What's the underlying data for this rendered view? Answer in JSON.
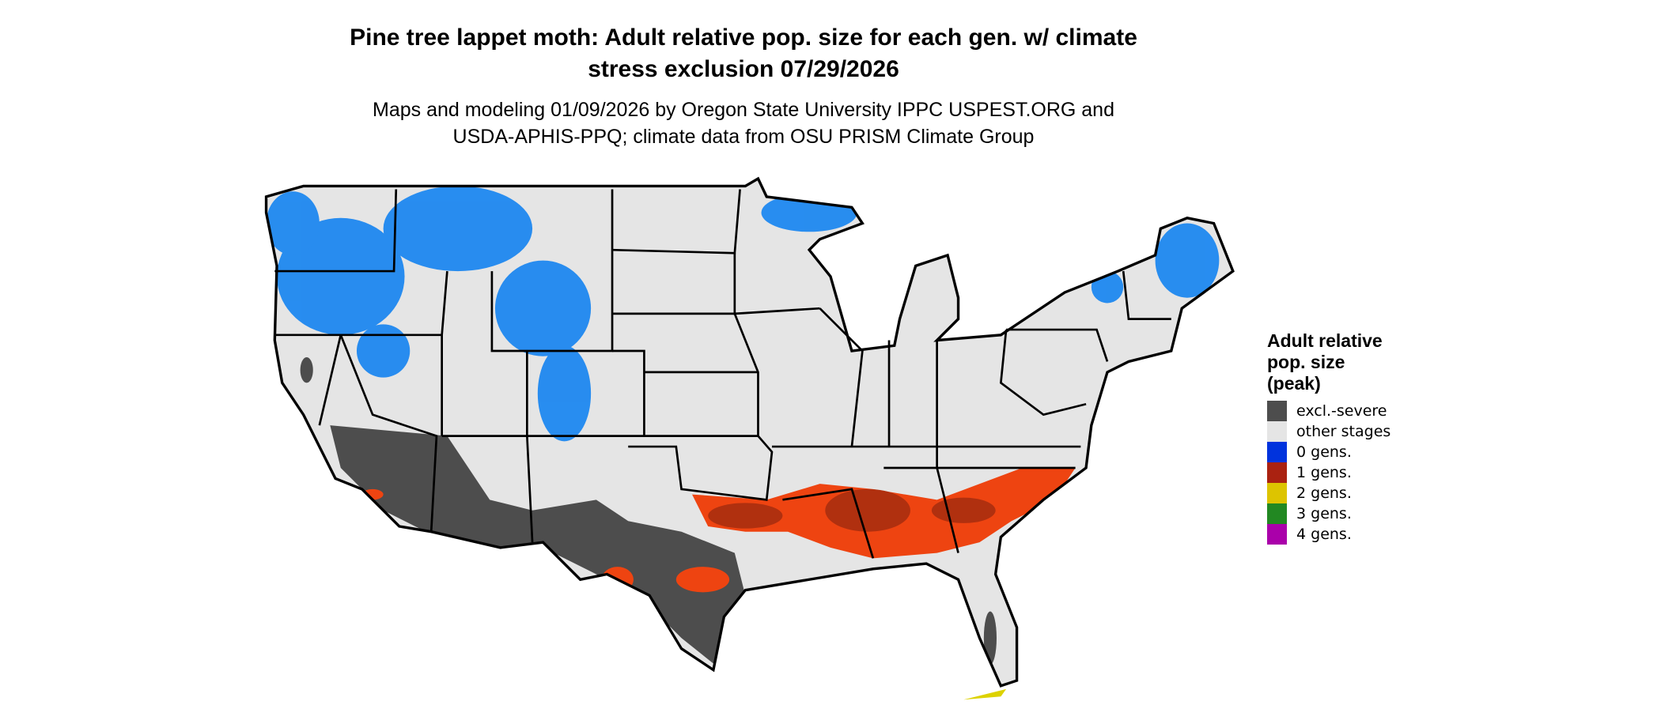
{
  "title": "Pine tree lappet moth: Adult relative pop. size for each gen. w/ climate stress exclusion 07/29/2026",
  "subtitle_line1": "Maps and modeling 01/09/2026 by Oregon State University IPPC USPEST.ORG and",
  "subtitle_line2": "USDA-APHIS-PPQ; climate data from OSU PRISM Climate Group",
  "map": {
    "region": "Contiguous United States",
    "background_color": "#e5e5e5",
    "border_color": "#000000"
  },
  "legend": {
    "title_lines": [
      "Adult relative",
      "pop. size",
      "(peak)"
    ],
    "items": [
      {
        "label": "excl.-severe",
        "color": "#4d4d4d"
      },
      {
        "label": "other stages",
        "color": "#e5e5e5"
      },
      {
        "label": "0 gens.",
        "color": "#0033dd"
      },
      {
        "label": "1 gens.",
        "color": "#aa2211"
      },
      {
        "label": "2 gens.",
        "color": "#ddc400"
      },
      {
        "label": "3 gens.",
        "color": "#228822"
      },
      {
        "label": "4 gens.",
        "color": "#aa00aa"
      }
    ]
  }
}
